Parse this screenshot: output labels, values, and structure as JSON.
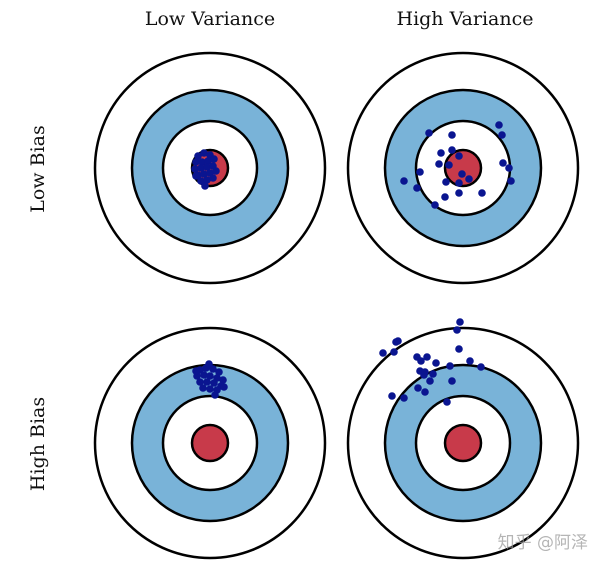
{
  "columns": [
    "Low Variance",
    "High Variance"
  ],
  "rows": [
    "Low Bias",
    "High Bias"
  ],
  "watermark": "知乎 @阿泽",
  "colors": {
    "ring_outline": "#000000",
    "blue_ring": "#79b3d8",
    "bullseye": "#c83a4a",
    "dots": "#0a1590",
    "background": "#ffffff"
  }
}
